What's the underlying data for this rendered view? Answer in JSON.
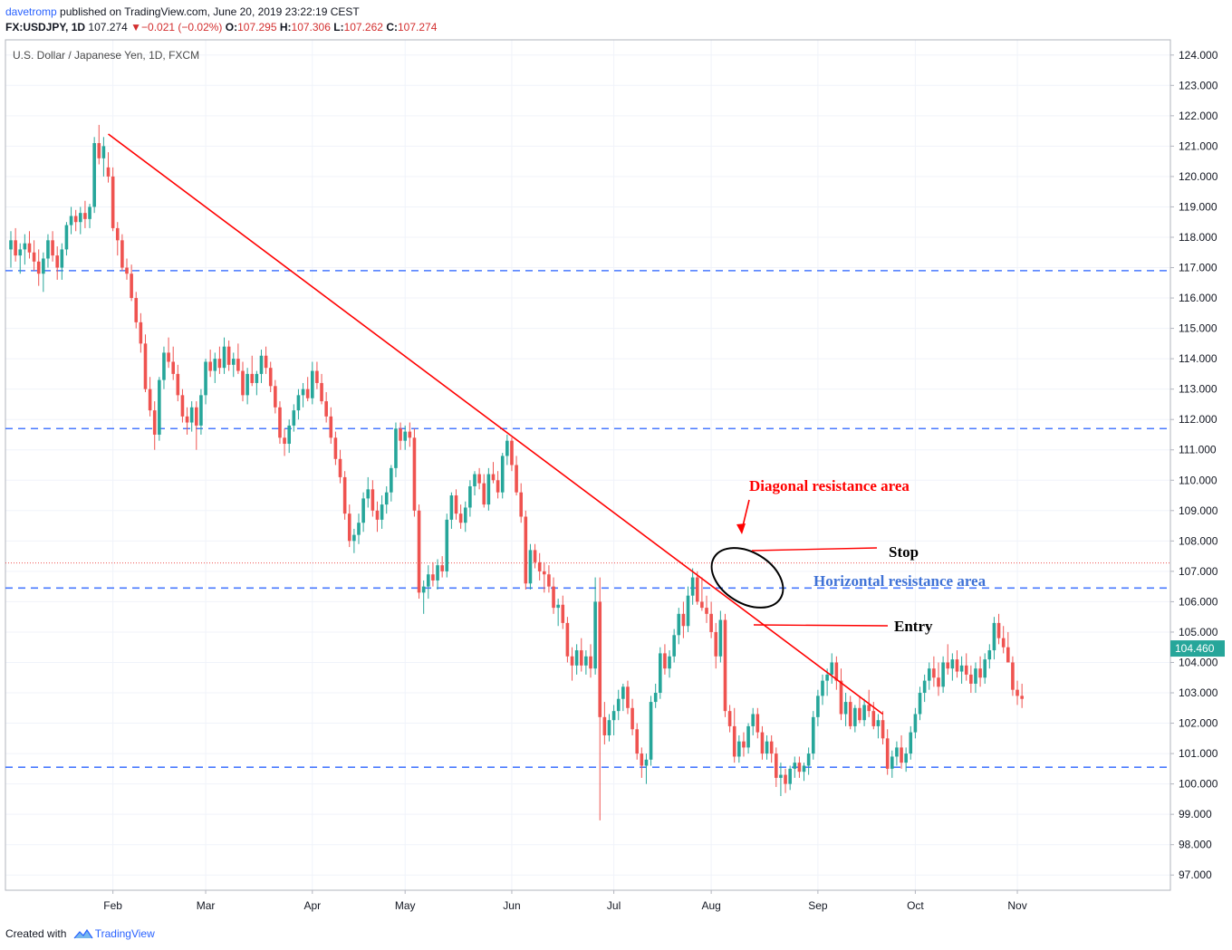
{
  "header": {
    "user": "davetromp",
    "published_text": "published on TradingView.com, June 20, 2019 23:22:19 CEST",
    "symbol": "FX:USDJPY",
    "interval": "1D",
    "last": "107.274",
    "change_arrow": "▼",
    "change": "−0.021 (−0.02%)",
    "open_label": "O:",
    "open": "107.295",
    "high_label": "H:",
    "high": "107.306",
    "low_label": "L:",
    "low": "107.262",
    "close_label": "C:",
    "close": "107.274"
  },
  "footer": {
    "created_with": "Created with",
    "brand": "TradingView"
  },
  "chart_data": {
    "type": "candlestick",
    "title": "U.S. Dollar / Japanese Yen, 1D, FXCM",
    "ylim": [
      96.5,
      124.5
    ],
    "x_tick_labels": [
      "Feb",
      "Mar",
      "Apr",
      "May",
      "Jun",
      "Jul",
      "Aug",
      "Sep",
      "Oct",
      "Nov"
    ],
    "y_tick_labels": [
      "97.000",
      "98.000",
      "99.000",
      "100.000",
      "101.000",
      "102.000",
      "103.000",
      "104.000",
      "105.000",
      "106.000",
      "107.000",
      "108.000",
      "109.000",
      "110.000",
      "111.000",
      "112.000",
      "113.000",
      "114.000",
      "115.000",
      "116.000",
      "117.000",
      "118.000",
      "119.000",
      "120.000",
      "121.000",
      "122.000",
      "123.000",
      "124.000"
    ],
    "last_price_label": "104.460",
    "last_price": 104.46,
    "current_price_line": 107.274,
    "horizontal_levels": [
      116.9,
      111.7,
      106.45,
      100.55
    ],
    "trendline": {
      "start": {
        "date": "2017-01-31",
        "price": 121.4
      },
      "end": {
        "date": "2017-09-21",
        "price": 102.3
      }
    },
    "candles": [
      [
        117.6,
        118.2,
        117.0,
        117.9
      ],
      [
        117.9,
        118.3,
        117.2,
        117.4
      ],
      [
        117.4,
        117.8,
        116.8,
        117.6
      ],
      [
        117.6,
        118.1,
        117.1,
        117.8
      ],
      [
        117.8,
        118.2,
        117.3,
        117.5
      ],
      [
        117.5,
        117.9,
        116.9,
        117.2
      ],
      [
        117.2,
        117.6,
        116.4,
        116.8
      ],
      [
        116.8,
        117.5,
        116.2,
        117.3
      ],
      [
        117.3,
        118.1,
        117.0,
        117.9
      ],
      [
        117.9,
        118.2,
        117.2,
        117.4
      ],
      [
        117.4,
        117.7,
        116.6,
        117.0
      ],
      [
        117.0,
        117.8,
        116.6,
        117.6
      ],
      [
        117.6,
        118.5,
        117.4,
        118.4
      ],
      [
        118.4,
        119.0,
        118.1,
        118.7
      ],
      [
        118.7,
        118.9,
        118.2,
        118.5
      ],
      [
        118.5,
        119.0,
        118.1,
        118.8
      ],
      [
        118.8,
        119.2,
        118.3,
        118.6
      ],
      [
        118.6,
        119.1,
        118.3,
        119.0
      ],
      [
        119.0,
        121.3,
        118.8,
        121.1
      ],
      [
        121.1,
        121.7,
        120.4,
        120.6
      ],
      [
        120.6,
        121.3,
        120.0,
        121.0
      ],
      [
        120.3,
        120.8,
        119.8,
        120.0
      ],
      [
        120.0,
        120.3,
        118.2,
        118.3
      ],
      [
        118.3,
        118.5,
        117.4,
        117.9
      ],
      [
        117.9,
        118.1,
        116.9,
        117.0
      ],
      [
        117.0,
        117.3,
        116.6,
        116.8
      ],
      [
        116.8,
        117.1,
        115.9,
        116.0
      ],
      [
        116.0,
        116.2,
        115.0,
        115.2
      ],
      [
        115.2,
        115.5,
        114.2,
        114.5
      ],
      [
        114.5,
        114.8,
        112.9,
        113.0
      ],
      [
        113.0,
        113.4,
        112.1,
        112.3
      ],
      [
        112.3,
        112.6,
        111.0,
        111.5
      ],
      [
        111.5,
        113.4,
        111.3,
        113.3
      ],
      [
        113.3,
        114.4,
        113.0,
        114.2
      ],
      [
        114.2,
        114.7,
        113.7,
        113.9
      ],
      [
        113.9,
        114.4,
        113.3,
        113.5
      ],
      [
        113.5,
        113.8,
        112.6,
        112.8
      ],
      [
        112.8,
        113.0,
        111.9,
        112.1
      ],
      [
        112.1,
        112.4,
        111.5,
        111.9
      ],
      [
        111.9,
        112.6,
        111.6,
        112.4
      ],
      [
        112.4,
        112.6,
        111.0,
        111.8
      ],
      [
        111.8,
        113.0,
        111.5,
        112.8
      ],
      [
        112.8,
        114.0,
        112.5,
        113.9
      ],
      [
        113.9,
        114.3,
        113.4,
        113.6
      ],
      [
        113.6,
        114.2,
        113.2,
        114.0
      ],
      [
        114.0,
        114.4,
        113.5,
        113.7
      ],
      [
        113.7,
        114.7,
        113.5,
        114.4
      ],
      [
        114.4,
        114.6,
        113.6,
        113.8
      ],
      [
        113.8,
        114.2,
        113.4,
        114.0
      ],
      [
        114.0,
        114.5,
        113.5,
        113.6
      ],
      [
        113.6,
        113.9,
        112.6,
        112.8
      ],
      [
        112.8,
        113.7,
        112.5,
        113.5
      ],
      [
        113.5,
        114.1,
        113.1,
        113.2
      ],
      [
        113.2,
        113.6,
        112.8,
        113.5
      ],
      [
        113.5,
        114.3,
        113.2,
        114.1
      ],
      [
        114.1,
        114.4,
        113.5,
        113.7
      ],
      [
        113.7,
        113.9,
        112.9,
        113.1
      ],
      [
        113.1,
        113.3,
        112.2,
        112.4
      ],
      [
        112.4,
        112.6,
        111.2,
        111.4
      ],
      [
        111.4,
        111.7,
        110.8,
        111.2
      ],
      [
        111.2,
        112.0,
        110.9,
        111.8
      ],
      [
        111.8,
        112.5,
        111.6,
        112.3
      ],
      [
        112.3,
        113.0,
        112.0,
        112.8
      ],
      [
        112.8,
        113.2,
        112.4,
        113.0
      ],
      [
        113.0,
        113.4,
        112.6,
        112.7
      ],
      [
        112.7,
        113.9,
        112.5,
        113.6
      ],
      [
        113.6,
        113.9,
        113.0,
        113.2
      ],
      [
        113.2,
        113.5,
        112.5,
        112.6
      ],
      [
        112.6,
        112.9,
        111.9,
        112.1
      ],
      [
        112.1,
        112.4,
        111.2,
        111.4
      ],
      [
        111.4,
        111.6,
        110.5,
        110.7
      ],
      [
        110.7,
        111.0,
        109.9,
        110.1
      ],
      [
        110.1,
        110.3,
        108.7,
        108.9
      ],
      [
        108.9,
        109.2,
        107.8,
        108.0
      ],
      [
        108.0,
        108.4,
        107.6,
        108.2
      ],
      [
        108.2,
        108.9,
        107.9,
        108.6
      ],
      [
        108.6,
        109.6,
        108.3,
        109.4
      ],
      [
        109.4,
        110.1,
        109.1,
        109.7
      ],
      [
        109.7,
        110.0,
        108.8,
        109.0
      ],
      [
        109.0,
        109.3,
        108.3,
        108.7
      ],
      [
        108.7,
        109.5,
        108.4,
        109.2
      ],
      [
        109.2,
        109.8,
        108.9,
        109.6
      ],
      [
        109.6,
        110.5,
        109.3,
        110.4
      ],
      [
        110.4,
        111.9,
        110.1,
        111.7
      ],
      [
        111.7,
        111.9,
        111.0,
        111.3
      ],
      [
        111.3,
        111.8,
        111.0,
        111.6
      ],
      [
        111.6,
        111.9,
        111.1,
        111.4
      ],
      [
        111.4,
        111.7,
        108.8,
        109.0
      ],
      [
        109.0,
        109.2,
        106.1,
        106.3
      ],
      [
        106.3,
        106.7,
        105.6,
        106.5
      ],
      [
        106.5,
        107.2,
        106.1,
        106.9
      ],
      [
        106.9,
        107.3,
        106.5,
        106.7
      ],
      [
        106.7,
        107.4,
        106.4,
        107.2
      ],
      [
        107.2,
        107.5,
        106.8,
        107.0
      ],
      [
        107.0,
        108.9,
        106.8,
        108.7
      ],
      [
        108.7,
        109.6,
        108.4,
        109.5
      ],
      [
        109.5,
        109.7,
        108.7,
        108.9
      ],
      [
        108.9,
        109.2,
        108.4,
        108.6
      ],
      [
        108.6,
        109.3,
        108.3,
        109.1
      ],
      [
        109.1,
        110.0,
        108.8,
        109.8
      ],
      [
        109.8,
        110.3,
        109.5,
        110.2
      ],
      [
        110.2,
        110.4,
        109.7,
        109.9
      ],
      [
        109.9,
        110.2,
        109.1,
        109.2
      ],
      [
        109.2,
        110.4,
        109.0,
        110.2
      ],
      [
        110.2,
        110.6,
        109.9,
        110.0
      ],
      [
        110.0,
        110.3,
        109.4,
        109.6
      ],
      [
        109.6,
        110.9,
        109.4,
        110.8
      ],
      [
        110.8,
        111.5,
        110.5,
        111.3
      ],
      [
        111.3,
        111.4,
        110.3,
        110.5
      ],
      [
        110.5,
        110.8,
        109.5,
        109.6
      ],
      [
        109.6,
        109.9,
        108.6,
        108.8
      ],
      [
        108.8,
        109.0,
        106.4,
        106.6
      ],
      [
        106.6,
        107.9,
        106.4,
        107.7
      ],
      [
        107.7,
        107.9,
        107.1,
        107.3
      ],
      [
        107.3,
        107.6,
        106.7,
        107.0
      ],
      [
        107.0,
        107.3,
        106.3,
        106.9
      ],
      [
        106.9,
        107.2,
        106.3,
        106.5
      ],
      [
        106.5,
        106.8,
        105.6,
        105.8
      ],
      [
        105.8,
        106.1,
        105.2,
        105.9
      ],
      [
        105.9,
        106.2,
        105.1,
        105.3
      ],
      [
        105.3,
        105.5,
        104.0,
        104.2
      ],
      [
        104.2,
        104.5,
        103.4,
        103.9
      ],
      [
        103.9,
        104.6,
        103.6,
        104.4
      ],
      [
        104.4,
        104.8,
        103.7,
        103.9
      ],
      [
        103.9,
        104.4,
        103.6,
        104.2
      ],
      [
        104.2,
        104.6,
        103.5,
        103.8
      ],
      [
        103.8,
        106.8,
        103.6,
        106.0
      ],
      [
        106.0,
        106.8,
        98.8,
        102.2
      ],
      [
        102.2,
        102.7,
        101.3,
        101.6
      ],
      [
        101.6,
        102.3,
        101.4,
        102.1
      ],
      [
        102.1,
        102.6,
        101.6,
        102.4
      ],
      [
        102.4,
        103.1,
        102.1,
        102.8
      ],
      [
        102.8,
        103.3,
        102.4,
        103.2
      ],
      [
        103.2,
        103.4,
        102.3,
        102.5
      ],
      [
        102.5,
        102.8,
        101.6,
        101.8
      ],
      [
        101.8,
        102.0,
        100.8,
        101.0
      ],
      [
        101.0,
        101.2,
        100.2,
        100.6
      ],
      [
        100.6,
        101.0,
        100.0,
        100.8
      ],
      [
        100.8,
        102.9,
        100.6,
        102.7
      ],
      [
        102.7,
        103.3,
        102.5,
        103.0
      ],
      [
        103.0,
        104.5,
        102.8,
        104.3
      ],
      [
        104.3,
        104.6,
        103.6,
        103.8
      ],
      [
        103.8,
        104.4,
        103.5,
        104.2
      ],
      [
        104.2,
        105.1,
        104.0,
        104.9
      ],
      [
        104.9,
        105.8,
        104.6,
        105.6
      ],
      [
        105.6,
        106.0,
        104.8,
        105.2
      ],
      [
        105.2,
        106.5,
        105.0,
        106.2
      ],
      [
        106.2,
        107.1,
        105.9,
        106.8
      ],
      [
        106.8,
        107.0,
        105.9,
        106.0
      ],
      [
        106.0,
        106.8,
        105.7,
        105.8
      ],
      [
        105.8,
        106.2,
        105.3,
        105.6
      ],
      [
        105.6,
        106.0,
        104.8,
        105.0
      ],
      [
        105.0,
        105.3,
        103.8,
        104.2
      ],
      [
        104.2,
        105.7,
        104.0,
        105.4
      ],
      [
        105.4,
        105.6,
        102.2,
        102.4
      ],
      [
        102.4,
        102.6,
        101.7,
        101.9
      ],
      [
        101.9,
        102.5,
        100.7,
        100.9
      ],
      [
        100.9,
        101.6,
        100.7,
        101.4
      ],
      [
        101.4,
        101.7,
        100.9,
        101.2
      ],
      [
        101.2,
        102.0,
        101.0,
        101.9
      ],
      [
        101.9,
        102.5,
        101.6,
        102.3
      ],
      [
        102.3,
        102.5,
        101.5,
        101.7
      ],
      [
        101.7,
        101.9,
        100.8,
        101.0
      ],
      [
        101.0,
        101.6,
        100.8,
        101.4
      ],
      [
        101.4,
        101.6,
        100.7,
        101.0
      ],
      [
        101.0,
        101.2,
        99.9,
        100.2
      ],
      [
        100.2,
        100.7,
        99.6,
        100.3
      ],
      [
        100.3,
        100.5,
        99.7,
        100.0
      ],
      [
        100.0,
        100.6,
        99.8,
        100.5
      ],
      [
        100.5,
        100.9,
        100.2,
        100.7
      ],
      [
        100.7,
        100.9,
        100.2,
        100.4
      ],
      [
        100.4,
        100.7,
        100.1,
        100.6
      ],
      [
        100.6,
        101.2,
        100.3,
        101.0
      ],
      [
        101.0,
        102.4,
        100.8,
        102.2
      ],
      [
        102.2,
        103.1,
        101.9,
        102.9
      ],
      [
        102.9,
        103.6,
        102.6,
        103.4
      ],
      [
        103.4,
        103.8,
        102.9,
        103.6
      ],
      [
        103.6,
        104.3,
        103.3,
        104.0
      ],
      [
        104.0,
        104.2,
        103.1,
        103.4
      ],
      [
        103.4,
        103.8,
        102.1,
        102.3
      ],
      [
        102.3,
        103.0,
        101.9,
        102.7
      ],
      [
        102.7,
        102.9,
        101.8,
        101.9
      ],
      [
        101.9,
        102.6,
        101.7,
        102.5
      ],
      [
        102.5,
        102.9,
        102.0,
        102.1
      ],
      [
        102.1,
        102.8,
        101.9,
        102.6
      ],
      [
        102.6,
        103.1,
        102.2,
        102.4
      ],
      [
        102.4,
        102.7,
        101.8,
        101.9
      ],
      [
        101.9,
        102.3,
        101.5,
        102.1
      ],
      [
        102.1,
        102.4,
        101.3,
        101.5
      ],
      [
        101.5,
        101.8,
        100.3,
        100.5
      ],
      [
        100.5,
        101.1,
        100.2,
        100.9
      ],
      [
        100.9,
        101.4,
        100.6,
        101.2
      ],
      [
        101.2,
        101.6,
        100.5,
        100.7
      ],
      [
        100.7,
        101.2,
        100.4,
        101.0
      ],
      [
        101.0,
        101.9,
        100.8,
        101.7
      ],
      [
        101.7,
        102.5,
        101.5,
        102.3
      ],
      [
        102.3,
        103.2,
        102.1,
        103.0
      ],
      [
        103.0,
        103.6,
        102.7,
        103.4
      ],
      [
        103.4,
        104.0,
        103.1,
        103.8
      ],
      [
        103.8,
        104.2,
        103.2,
        103.5
      ],
      [
        103.5,
        104.0,
        102.9,
        103.2
      ],
      [
        103.2,
        104.2,
        103.0,
        104.0
      ],
      [
        104.0,
        104.6,
        103.6,
        103.8
      ],
      [
        103.8,
        104.3,
        103.4,
        104.1
      ],
      [
        104.1,
        104.4,
        103.5,
        103.7
      ],
      [
        103.7,
        104.2,
        103.3,
        103.9
      ],
      [
        103.9,
        104.3,
        103.4,
        103.6
      ],
      [
        103.6,
        103.9,
        103.0,
        103.3
      ],
      [
        103.3,
        104.0,
        103.0,
        103.8
      ],
      [
        103.8,
        104.2,
        103.2,
        103.5
      ],
      [
        103.5,
        104.3,
        103.3,
        104.1
      ],
      [
        104.1,
        104.6,
        103.8,
        104.4
      ],
      [
        104.4,
        105.5,
        104.1,
        105.3
      ],
      [
        105.3,
        105.6,
        104.6,
        104.8
      ],
      [
        104.8,
        105.2,
        104.3,
        104.5
      ],
      [
        104.5,
        105.0,
        104.2,
        104.0
      ],
      [
        104.0,
        104.2,
        102.9,
        103.1
      ],
      [
        103.1,
        103.4,
        102.6,
        102.9
      ],
      [
        102.9,
        103.3,
        102.5,
        102.8
      ]
    ],
    "annotations": [
      {
        "text": "Diagonal resistance area",
        "color": "#ff0000"
      },
      {
        "text": "Stop",
        "color": "#000000"
      },
      {
        "text": "Horizontal resistance area",
        "color": "#3f72d6"
      },
      {
        "text": "Entry",
        "color": "#000000"
      }
    ],
    "colors": {
      "up": "#26a69a",
      "down": "#ef5350",
      "level": "#2962ff",
      "trend": "#ff0000",
      "grid": "#f0f3fa"
    }
  }
}
